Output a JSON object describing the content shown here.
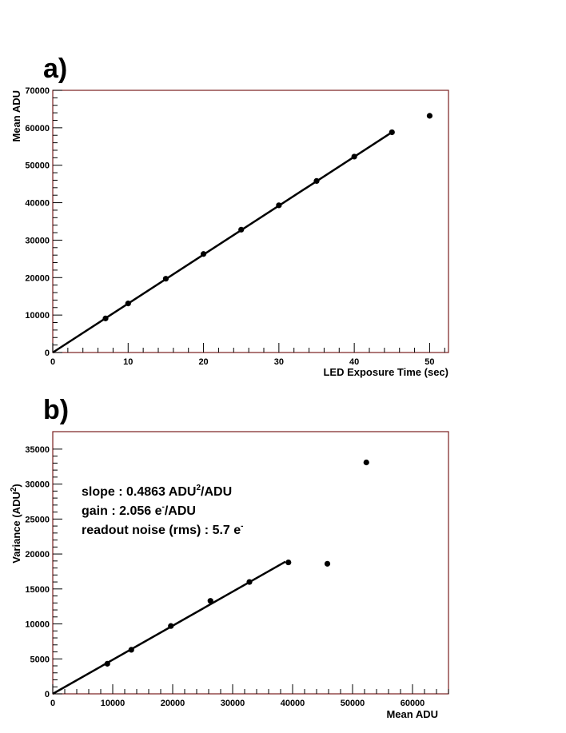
{
  "chart_data": [
    {
      "type": "scatter",
      "panel_label": "a)",
      "xlabel": "LED Exposure Time (sec)",
      "ylabel": "Mean ADU",
      "xlim": [
        0,
        52.5
      ],
      "ylim": [
        0,
        70000
      ],
      "x_ticks": [
        0,
        10,
        20,
        30,
        40,
        50
      ],
      "y_ticks": [
        0,
        10000,
        20000,
        30000,
        40000,
        50000,
        60000,
        70000
      ],
      "points": [
        {
          "x": 7,
          "y": 9100
        },
        {
          "x": 10,
          "y": 13100
        },
        {
          "x": 15,
          "y": 19700
        },
        {
          "x": 20,
          "y": 26300
        },
        {
          "x": 25,
          "y": 32800
        },
        {
          "x": 30,
          "y": 39300
        },
        {
          "x": 35,
          "y": 45800
        },
        {
          "x": 40,
          "y": 52300
        },
        {
          "x": 45,
          "y": 58800
        },
        {
          "x": 50,
          "y": 63200
        }
      ],
      "fit_line": {
        "x": [
          0,
          45
        ],
        "y": [
          0,
          58800
        ]
      },
      "grid": false
    },
    {
      "type": "scatter",
      "panel_label": "b)",
      "xlabel": "Mean ADU",
      "ylabel_main": "Variance (ADU",
      "ylabel_sup": "2",
      "ylabel_end": ")",
      "xlim": [
        0,
        66000
      ],
      "ylim": [
        0,
        37500
      ],
      "x_ticks": [
        0,
        10000,
        20000,
        30000,
        40000,
        50000,
        60000
      ],
      "y_ticks": [
        0,
        5000,
        10000,
        15000,
        20000,
        25000,
        30000,
        35000
      ],
      "points": [
        {
          "x": 9100,
          "y": 4300
        },
        {
          "x": 13100,
          "y": 6300
        },
        {
          "x": 19700,
          "y": 9700
        },
        {
          "x": 26300,
          "y": 13300
        },
        {
          "x": 32800,
          "y": 16000
        },
        {
          "x": 39300,
          "y": 18800
        },
        {
          "x": 45800,
          "y": 18600
        },
        {
          "x": 52300,
          "y": 33100
        }
      ],
      "fit_line": {
        "x": [
          0,
          38800
        ],
        "y": [
          0,
          18900
        ]
      },
      "annotations": {
        "slope_main": "slope : 0.4863 ADU",
        "slope_sup": "2",
        "slope_end": "/ADU",
        "gain_main": "gain : 2.056 e",
        "gain_sup": "-",
        "gain_end": "/ADU",
        "noise_main": "readout noise (rms) : 5.7 e",
        "noise_sup": "-"
      },
      "grid": false
    }
  ]
}
